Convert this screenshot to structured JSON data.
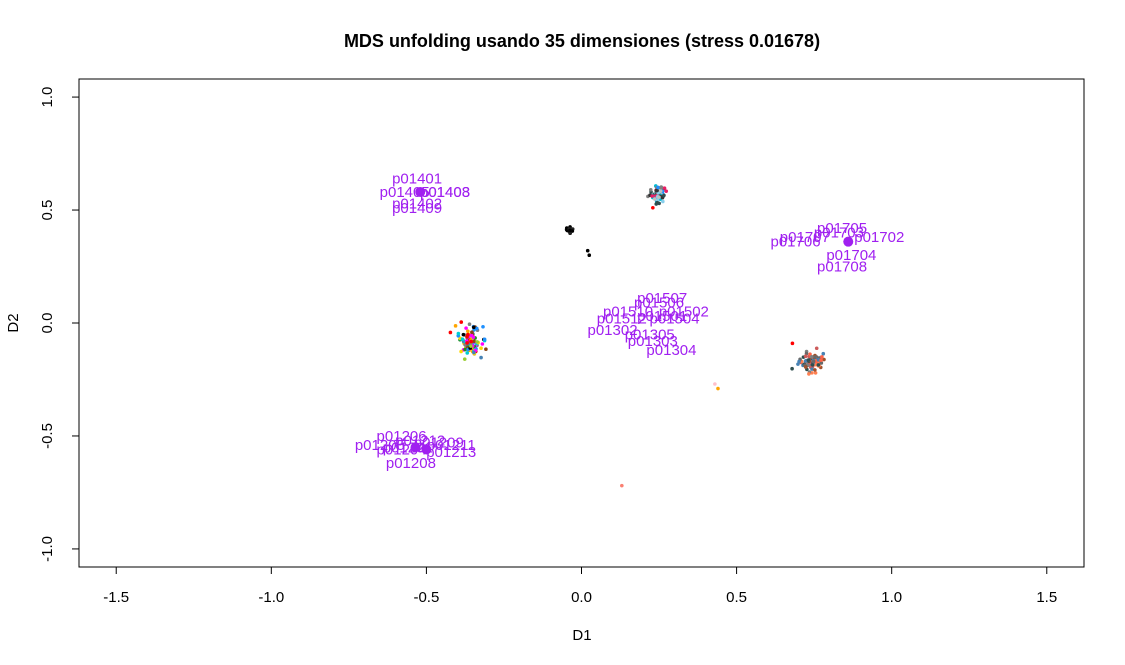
{
  "chart_data": {
    "type": "scatter",
    "title": "MDS unfolding usando 35 dimensiones (stress 0.01678)",
    "xlabel": "D1",
    "ylabel": "D2",
    "xlim": [
      -1.62,
      1.62
    ],
    "ylim": [
      -1.08,
      1.08
    ],
    "x_ticks": [
      -1.5,
      -1.0,
      -0.5,
      0.0,
      0.5,
      1.0,
      1.5
    ],
    "x_tick_labels": [
      "-1.5",
      "-1.0",
      "-0.5",
      "0.0",
      "0.5",
      "1.0",
      "1.5"
    ],
    "y_ticks": [
      -1.0,
      -0.5,
      0.0,
      0.5,
      1.0
    ],
    "y_tick_labels": [
      "-1.0",
      "-0.5",
      "0.0",
      "0.5",
      "1.0"
    ],
    "grid": false,
    "legend": "none",
    "label_color": "#a020f0",
    "clusters": [
      {
        "cx": 0.245,
        "cy": 0.57,
        "spread": [
          0.025,
          0.03
        ],
        "count": 55,
        "palette": [
          "#00bcd4",
          "#1e90ff",
          "#808080",
          "#2f4f4f",
          "#c0c0c0",
          "#e91e63",
          "#333333",
          "#87ceeb"
        ]
      },
      {
        "cx": -0.36,
        "cy": -0.08,
        "spread": [
          0.03,
          0.055
        ],
        "count": 110,
        "palette": [
          "#ff00ff",
          "#ffa500",
          "#000000",
          "#808080",
          "#1e90ff",
          "#228b22",
          "#ff0000",
          "#00ced1",
          "#ffd700",
          "#8b4513",
          "#9acd32",
          "#4682b4"
        ]
      },
      {
        "cx": 0.74,
        "cy": -0.17,
        "spread": [
          0.03,
          0.035
        ],
        "count": 90,
        "palette": [
          "#2f4f4f",
          "#808080",
          "#ff7f50",
          "#4682b4",
          "#a0522d",
          "#ff6347",
          "#696969",
          "#cd5c5c"
        ]
      },
      {
        "cx": -0.04,
        "cy": 0.41,
        "spread": [
          0.01,
          0.015
        ],
        "count": 22,
        "palette": [
          "#000000",
          "#222222"
        ]
      }
    ],
    "single_points": [
      {
        "x": 0.02,
        "y": 0.32,
        "color": "#000000"
      },
      {
        "x": 0.025,
        "y": 0.3,
        "color": "#000000"
      },
      {
        "x": 0.23,
        "y": 0.51,
        "color": "#ff0000"
      },
      {
        "x": 0.68,
        "y": -0.09,
        "color": "#ff0000"
      },
      {
        "x": 0.44,
        "y": -0.29,
        "color": "#ffa500"
      },
      {
        "x": 0.43,
        "y": -0.27,
        "color": "#ffc0cb"
      },
      {
        "x": 0.13,
        "y": -0.72,
        "color": "#fa8072"
      }
    ],
    "label_points": [
      {
        "x": -0.52,
        "y": 0.58
      },
      {
        "x": 0.86,
        "y": 0.36
      },
      {
        "x": -0.535,
        "y": -0.55
      },
      {
        "x": -0.5,
        "y": -0.56
      }
    ],
    "labels": [
      {
        "text": "p01401",
        "x": -0.53,
        "y": 0.64
      },
      {
        "text": "p01405",
        "x": -0.57,
        "y": 0.58
      },
      {
        "text": "p01403",
        "x": -0.44,
        "y": 0.58
      },
      {
        "text": "p01408",
        "x": -0.44,
        "y": 0.58
      },
      {
        "text": "p01402",
        "x": -0.53,
        "y": 0.53
      },
      {
        "text": "p01409",
        "x": -0.53,
        "y": 0.51
      },
      {
        "text": "p01705",
        "x": 0.84,
        "y": 0.42
      },
      {
        "text": "p01707",
        "x": 0.72,
        "y": 0.38
      },
      {
        "text": "p01706",
        "x": 0.69,
        "y": 0.36
      },
      {
        "text": "p01703",
        "x": 0.83,
        "y": 0.4
      },
      {
        "text": "p01702",
        "x": 0.96,
        "y": 0.38
      },
      {
        "text": "p01704",
        "x": 0.87,
        "y": 0.3
      },
      {
        "text": "p01708",
        "x": 0.84,
        "y": 0.25
      },
      {
        "text": "p01507",
        "x": 0.26,
        "y": 0.11
      },
      {
        "text": "p01502",
        "x": 0.33,
        "y": 0.05
      },
      {
        "text": "p01510",
        "x": 0.15,
        "y": 0.05
      },
      {
        "text": "p01512",
        "x": 0.13,
        "y": 0.02
      },
      {
        "text": "p01506",
        "x": 0.25,
        "y": 0.09
      },
      {
        "text": "p01504",
        "x": 0.3,
        "y": 0.02
      },
      {
        "text": "p01501",
        "x": 0.26,
        "y": 0.03
      },
      {
        "text": "p01302",
        "x": 0.1,
        "y": -0.03
      },
      {
        "text": "p01305",
        "x": 0.22,
        "y": -0.05
      },
      {
        "text": "p01303",
        "x": 0.23,
        "y": -0.08
      },
      {
        "text": "p01304",
        "x": 0.29,
        "y": -0.12
      },
      {
        "text": "p01206",
        "x": -0.58,
        "y": -0.5
      },
      {
        "text": "p01212",
        "x": -0.52,
        "y": -0.52
      },
      {
        "text": "p01205",
        "x": -0.65,
        "y": -0.54
      },
      {
        "text": "p01201",
        "x": -0.56,
        "y": -0.55
      },
      {
        "text": "p01204",
        "x": -0.58,
        "y": -0.56
      },
      {
        "text": "p01209",
        "x": -0.46,
        "y": -0.53
      },
      {
        "text": "p01211",
        "x": -0.42,
        "y": -0.54
      },
      {
        "text": "p01213",
        "x": -0.42,
        "y": -0.57
      },
      {
        "text": "p01208",
        "x": -0.55,
        "y": -0.62
      }
    ]
  }
}
